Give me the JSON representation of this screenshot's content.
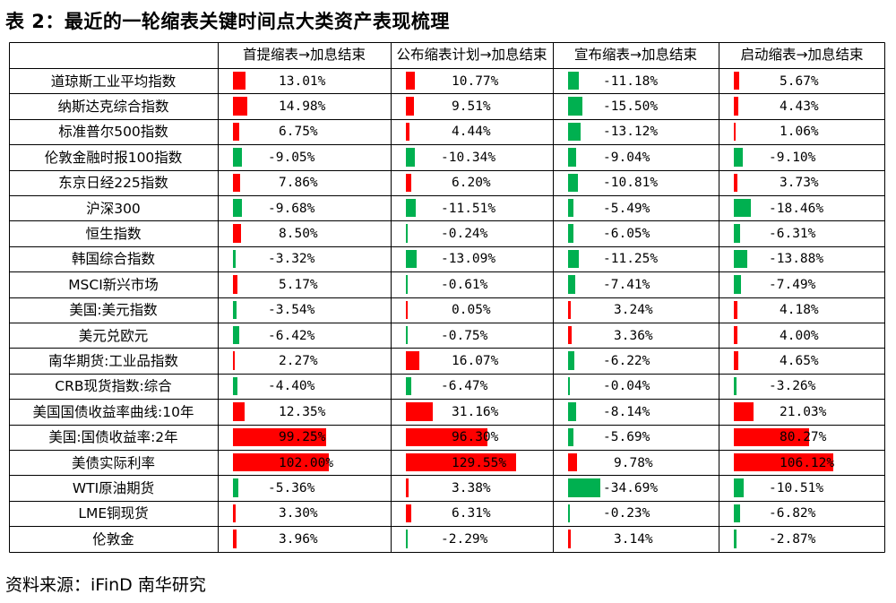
{
  "title": "表 2：最近的一轮缩表关键时间点大类资产表现梳理",
  "source": "资料来源：iFinD 南华研究",
  "colors": {
    "positive": "#ff0000",
    "negative": "#00b050",
    "grid": "#000000"
  },
  "chart_data": {
    "type": "table",
    "columns": [
      "首提缩表→加息结束",
      "公布缩表计划→加息结束",
      "宣布缩表→加息结束",
      "启动缩表→加息结束"
    ],
    "rows": [
      {
        "label": "道琼斯工业平均指数",
        "values": [
          13.01,
          10.77,
          -11.18,
          5.67
        ],
        "texts": [
          "13.01%",
          "10.77%",
          "-11.18%",
          "5.67%"
        ]
      },
      {
        "label": "纳斯达克综合指数",
        "values": [
          14.98,
          9.51,
          -15.5,
          4.43
        ],
        "texts": [
          "14.98%",
          "9.51%",
          "-15.50%",
          "4.43%"
        ]
      },
      {
        "label": "标准普尔500指数",
        "values": [
          6.75,
          4.44,
          -13.12,
          1.06
        ],
        "texts": [
          "6.75%",
          "4.44%",
          "-13.12%",
          "1.06%"
        ]
      },
      {
        "label": "伦敦金融时报100指数",
        "values": [
          -9.05,
          -10.34,
          -9.04,
          -9.1
        ],
        "texts": [
          "-9.05%",
          "-10.34%",
          "-9.04%",
          "-9.10%"
        ]
      },
      {
        "label": "东京日经225指数",
        "values": [
          7.86,
          6.2,
          -10.81,
          3.73
        ],
        "texts": [
          "7.86%",
          "6.20%",
          "-10.81%",
          "3.73%"
        ]
      },
      {
        "label": "沪深300",
        "values": [
          -9.68,
          -11.51,
          -5.49,
          -18.46
        ],
        "texts": [
          "-9.68%",
          "-11.51%",
          "-5.49%",
          "-18.46%"
        ]
      },
      {
        "label": "恒生指数",
        "values": [
          8.5,
          -0.24,
          -6.05,
          -6.31
        ],
        "texts": [
          "8.50%",
          "-0.24%",
          "-6.05%",
          "-6.31%"
        ]
      },
      {
        "label": "韩国综合指数",
        "values": [
          -3.32,
          -13.09,
          -11.25,
          -13.88
        ],
        "texts": [
          "-3.32%",
          "-13.09%",
          "-11.25%",
          "-13.88%"
        ]
      },
      {
        "label": "MSCI新兴市场",
        "values": [
          5.17,
          -0.61,
          -7.41,
          -7.49
        ],
        "texts": [
          "5.17%",
          "-0.61%",
          "-7.41%",
          "-7.49%"
        ]
      },
      {
        "label": "美国:美元指数",
        "values": [
          -3.54,
          0.05,
          3.24,
          4.18
        ],
        "texts": [
          "-3.54%",
          "0.05%",
          "3.24%",
          "4.18%"
        ]
      },
      {
        "label": "美元兑欧元",
        "values": [
          -6.42,
          -0.75,
          3.36,
          4.0
        ],
        "texts": [
          "-6.42%",
          "-0.75%",
          "3.36%",
          "4.00%"
        ]
      },
      {
        "label": "南华期货:工业品指数",
        "values": [
          2.27,
          16.07,
          -6.22,
          4.65
        ],
        "texts": [
          "2.27%",
          "16.07%",
          "-6.22%",
          "4.65%"
        ]
      },
      {
        "label": "CRB现货指数:综合",
        "values": [
          -4.4,
          -6.47,
          -0.04,
          -3.26
        ],
        "texts": [
          "-4.40%",
          "-6.47%",
          "-0.04%",
          "-3.26%"
        ]
      },
      {
        "label": "美国国债收益率曲线:10年",
        "values": [
          12.35,
          31.16,
          -8.14,
          21.03
        ],
        "texts": [
          "12.35%",
          "31.16%",
          "-8.14%",
          "21.03%"
        ]
      },
      {
        "label": "美国:国债收益率:2年",
        "values": [
          99.25,
          96.3,
          -5.69,
          80.27
        ],
        "texts": [
          "99.25%",
          "96.30%",
          "-5.69%",
          "80.27%"
        ]
      },
      {
        "label": "美债实际利率",
        "values": [
          102.0,
          129.55,
          9.78,
          106.12
        ],
        "texts": [
          "102.00%",
          "129.55%",
          "9.78%",
          "106.12%"
        ]
      },
      {
        "label": "WTI原油期货",
        "values": [
          -5.36,
          3.38,
          -34.69,
          -10.51
        ],
        "texts": [
          "-5.36%",
          "3.38%",
          "-34.69%",
          "-10.51%"
        ]
      },
      {
        "label": "LME铜现货",
        "values": [
          3.3,
          6.31,
          -0.23,
          -6.82
        ],
        "texts": [
          "3.30%",
          "6.31%",
          "-0.23%",
          "-6.82%"
        ]
      },
      {
        "label": "伦敦金",
        "values": [
          3.96,
          -2.29,
          3.14,
          -2.87
        ],
        "texts": [
          "3.96%",
          "-2.29%",
          "3.14%",
          "-2.87%"
        ]
      }
    ]
  }
}
